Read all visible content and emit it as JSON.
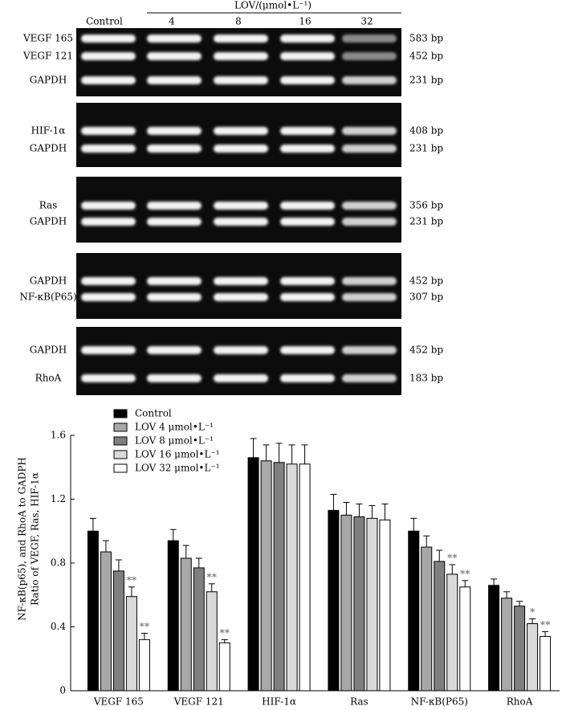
{
  "gels": {
    "control_label": "Control",
    "dose_title": "LOV/(μmol•L⁻¹)",
    "doses": [
      "4",
      "8",
      "16",
      "32"
    ],
    "panels": [
      {
        "bands": [
          {
            "label": "VEGF 165",
            "size": "583 bp"
          },
          {
            "label": "VEGF 121",
            "size": "452 bp"
          },
          {
            "label": "GAPDH",
            "size": "231 bp"
          }
        ]
      },
      {
        "bands": [
          {
            "label": "HIF-1α",
            "size": "408 bp"
          },
          {
            "label": "GAPDH",
            "size": "231 bp"
          }
        ]
      },
      {
        "bands": [
          {
            "label": "Ras",
            "size": "356 bp"
          },
          {
            "label": "GAPDH",
            "size": "231 bp"
          }
        ]
      },
      {
        "bands": [
          {
            "label": "GAPDH",
            "size": "452 bp"
          },
          {
            "label": "NF-κB(P65)",
            "size": "307 bp"
          }
        ]
      },
      {
        "bands": [
          {
            "label": "GAPDH",
            "size": "452 bp"
          },
          {
            "label": "RhoA",
            "size": "183 bp"
          }
        ]
      }
    ]
  },
  "chart_data": {
    "type": "bar",
    "y_label": [
      "Ratio of VEGF, Ras, HIF-1α",
      "NF-κB(p65), and RhoA to GADPH"
    ],
    "categories": [
      "VEGF 165",
      "VEGF 121",
      "HIF-1α",
      "Ras",
      "NF-κB(P65)",
      "RhoA"
    ],
    "ylim": [
      0,
      1.6
    ],
    "yticks": [
      0,
      0.4,
      0.8,
      1.2,
      1.6
    ],
    "legend": "top-left",
    "series": [
      {
        "name": "Control",
        "color": "#000000",
        "values": [
          1.0,
          0.94,
          1.46,
          1.13,
          1.0,
          0.66
        ],
        "errors": [
          0.08,
          0.07,
          0.12,
          0.1,
          0.08,
          0.04
        ],
        "significance": [
          null,
          null,
          null,
          null,
          null,
          null
        ]
      },
      {
        "name": "LOV 4 μmol•L⁻¹",
        "color": "#a8a8a8",
        "values": [
          0.87,
          0.83,
          1.44,
          1.1,
          0.9,
          0.58
        ],
        "errors": [
          0.07,
          0.08,
          0.1,
          0.08,
          0.07,
          0.04
        ],
        "significance": [
          null,
          null,
          null,
          null,
          null,
          null
        ]
      },
      {
        "name": "LOV 8 μmol•L⁻¹",
        "color": "#7f7f7f",
        "values": [
          0.75,
          0.77,
          1.43,
          1.09,
          0.81,
          0.53
        ],
        "errors": [
          0.07,
          0.06,
          0.12,
          0.08,
          0.07,
          0.03
        ],
        "significance": [
          null,
          null,
          null,
          null,
          null,
          null
        ]
      },
      {
        "name": "LOV 16 μmol•L⁻¹",
        "color": "#d9d9d9",
        "values": [
          0.59,
          0.62,
          1.42,
          1.08,
          0.73,
          0.42
        ],
        "errors": [
          0.06,
          0.05,
          0.12,
          0.08,
          0.06,
          0.03
        ],
        "significance": [
          "**",
          "**",
          null,
          null,
          "**",
          "*"
        ]
      },
      {
        "name": "LOV 32 μmol•L⁻¹",
        "color": "#ffffff",
        "values": [
          0.32,
          0.3,
          1.42,
          1.07,
          0.65,
          0.34
        ],
        "errors": [
          0.04,
          0.02,
          0.12,
          0.1,
          0.04,
          0.03
        ],
        "significance": [
          "**",
          "**",
          null,
          null,
          "**",
          "**"
        ]
      }
    ]
  }
}
